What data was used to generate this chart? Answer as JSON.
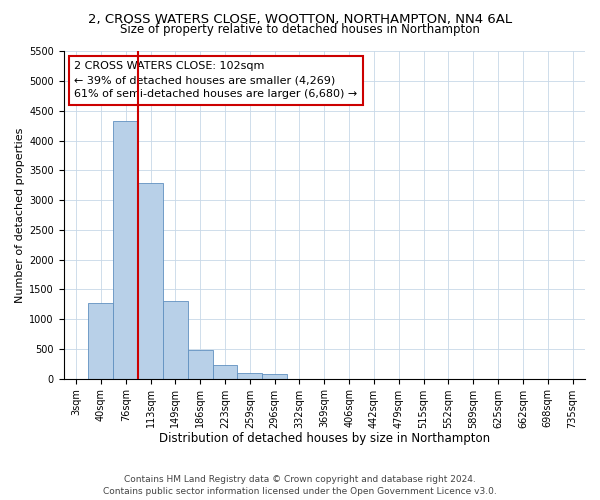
{
  "title1": "2, CROSS WATERS CLOSE, WOOTTON, NORTHAMPTON, NN4 6AL",
  "title2": "Size of property relative to detached houses in Northampton",
  "xlabel": "Distribution of detached houses by size in Northampton",
  "ylabel": "Number of detached properties",
  "categories": [
    "3sqm",
    "40sqm",
    "76sqm",
    "113sqm",
    "149sqm",
    "186sqm",
    "223sqm",
    "259sqm",
    "296sqm",
    "332sqm",
    "369sqm",
    "406sqm",
    "442sqm",
    "479sqm",
    "515sqm",
    "552sqm",
    "589sqm",
    "625sqm",
    "662sqm",
    "698sqm",
    "735sqm"
  ],
  "values": [
    0,
    1270,
    4330,
    3290,
    1300,
    480,
    230,
    100,
    70,
    0,
    0,
    0,
    0,
    0,
    0,
    0,
    0,
    0,
    0,
    0,
    0
  ],
  "bar_color": "#b8d0e8",
  "bar_edge_color": "#6090c0",
  "vline_x_idx": 2.5,
  "vline_color": "#cc0000",
  "annotation_text": "2 CROSS WATERS CLOSE: 102sqm\n← 39% of detached houses are smaller (4,269)\n61% of semi-detached houses are larger (6,680) →",
  "annotation_box_color": "#ffffff",
  "annotation_box_edge": "#cc0000",
  "ylim": [
    0,
    5500
  ],
  "yticks": [
    0,
    500,
    1000,
    1500,
    2000,
    2500,
    3000,
    3500,
    4000,
    4500,
    5000,
    5500
  ],
  "footer1": "Contains HM Land Registry data © Crown copyright and database right 2024.",
  "footer2": "Contains public sector information licensed under the Open Government Licence v3.0.",
  "bg_color": "#ffffff",
  "grid_color": "#c8d8e8",
  "title1_fontsize": 9.5,
  "title2_fontsize": 8.5,
  "xlabel_fontsize": 8.5,
  "ylabel_fontsize": 8,
  "tick_fontsize": 7,
  "footer_fontsize": 6.5,
  "annot_fontsize": 8
}
